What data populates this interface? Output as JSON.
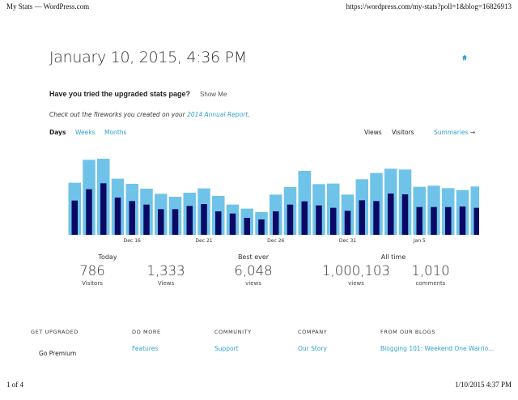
{
  "print_header": {
    "title": "My Stats — WordPress.com",
    "url": "https://wordpress.com/my-stats?poll=1&blog=16826913"
  },
  "page": {
    "title": "January 10, 2015, 4:36 PM",
    "home_icon": "home-icon"
  },
  "upgrade": {
    "question": "Have you tried the upgraded stats page?",
    "show_me": "Show Me"
  },
  "annual": {
    "prefix": "Check out the fireworks you created on your ",
    "link": "2014 Annual Report",
    "suffix": "."
  },
  "period_tabs": [
    {
      "label": "Days",
      "active": true
    },
    {
      "label": "Weeks"
    },
    {
      "label": "Months"
    }
  ],
  "metric_tabs": [
    {
      "label": "Views"
    },
    {
      "label": "Visitors"
    }
  ],
  "summaries": {
    "label": "Summaries",
    "icon": "arrow-right-icon"
  },
  "colors": {
    "views": "#6fc3e8",
    "visitors": "#0a0a66",
    "link": "#2ea2cc"
  },
  "chart_data": {
    "type": "bar",
    "note_scale": "no y-axis shown; values are relative estimates",
    "categories": [
      "Dec 12",
      "Dec 13",
      "Dec 14",
      "Dec 15",
      "Dec 16",
      "Dec 17",
      "Dec 18",
      "Dec 19",
      "Dec 20",
      "Dec 21",
      "Dec 22",
      "Dec 23",
      "Dec 24",
      "Dec 25",
      "Dec 26",
      "Dec 27",
      "Dec 28",
      "Dec 29",
      "Dec 30",
      "Dec 31",
      "Jan 1",
      "Jan 2",
      "Jan 3",
      "Jan 4",
      "Jan 5",
      "Jan 6",
      "Jan 7",
      "Jan 8",
      "Jan 9"
    ],
    "x_tick_labels": [
      "Dec 16",
      "Dec 21",
      "Dec 26",
      "Dec 31",
      "Jan 5"
    ],
    "series": [
      {
        "name": "Views",
        "values": [
          193,
          278,
          282,
          208,
          189,
          171,
          152,
          141,
          156,
          172,
          144,
          112,
          97,
          84,
          149,
          177,
          237,
          188,
          190,
          149,
          206,
          229,
          245,
          242,
          178,
          182,
          173,
          166,
          179
        ]
      },
      {
        "name": "Visitors",
        "values": [
          127,
          169,
          191,
          138,
          125,
          112,
          95,
          95,
          107,
          114,
          87,
          79,
          63,
          57,
          87,
          112,
          124,
          109,
          100,
          89,
          128,
          125,
          153,
          150,
          103,
          103,
          103,
          105,
          100
        ]
      }
    ],
    "ylim": [
      0,
      300
    ],
    "grid": false,
    "legend": "none"
  },
  "stats": {
    "today": {
      "heading": "Today",
      "visitors": {
        "value": "786",
        "label": "Visitors"
      },
      "views": {
        "value": "1,333",
        "label": "Views"
      }
    },
    "best": {
      "heading": "Best ever",
      "views": {
        "value": "6,048",
        "label": "views"
      }
    },
    "all_time": {
      "heading": "All time",
      "views": {
        "value": "1,000,103",
        "label": "views"
      },
      "comments": {
        "value": "1,010",
        "label": "comments"
      }
    }
  },
  "footer": [
    {
      "heading": "GET UPGRADED",
      "link": "Go Premium"
    },
    {
      "heading": "DO MORE",
      "link": "Features"
    },
    {
      "heading": "COMMUNITY",
      "link": "Support"
    },
    {
      "heading": "COMPANY",
      "link": "Our Story"
    },
    {
      "heading": "FROM OUR BLOGS",
      "link": "Blogging 101: Weekend One Warrio..."
    }
  ],
  "print_footer": {
    "page": "1 of 4",
    "datetime": "1/10/2015 4:37 PM"
  }
}
